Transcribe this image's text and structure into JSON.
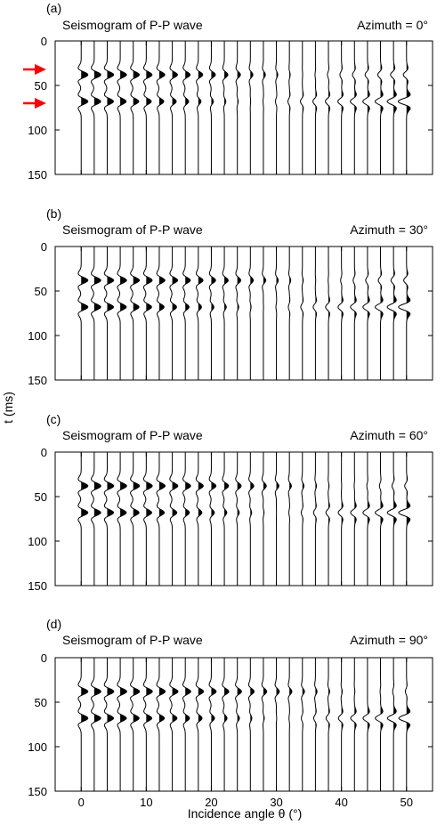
{
  "figure": {
    "ylabel": "t (ms)",
    "xlabel": "Incidence angle θ (°)"
  },
  "colors": {
    "trace": "#000000",
    "arrow": "#ff0000",
    "background": "#ffffff"
  },
  "chart_data": [
    {
      "type": "wiggle-seismogram",
      "panel_label": "(a)",
      "title": "Seismogram of P-P wave",
      "annotation": "Azimuth = 0°",
      "ylim": [
        0,
        150
      ],
      "yticks": [
        0,
        50,
        100,
        150
      ],
      "xlim": [
        -4,
        54
      ],
      "xticks": [
        0,
        10,
        20,
        30,
        40,
        50
      ],
      "trace_angles": [
        0,
        2,
        4,
        6,
        8,
        10,
        12,
        14,
        16,
        18,
        20,
        22,
        24,
        26,
        28,
        30,
        32,
        34,
        36,
        38,
        40,
        42,
        44,
        46,
        48,
        50
      ],
      "events": [
        {
          "time_ms": 38,
          "amplitudes": [
            1.0,
            0.98,
            0.96,
            0.93,
            0.9,
            0.86,
            0.82,
            0.77,
            0.72,
            0.66,
            0.6,
            0.53,
            0.46,
            0.38,
            0.3,
            0.21,
            0.12,
            0.03,
            -0.06,
            -0.15,
            -0.23,
            -0.3,
            -0.36,
            -0.41,
            -0.45,
            -0.48
          ]
        },
        {
          "time_ms": 68,
          "amplitudes": [
            1.0,
            0.97,
            0.93,
            0.88,
            0.82,
            0.75,
            0.67,
            0.59,
            0.5,
            0.4,
            0.31,
            0.22,
            0.13,
            0.04,
            -0.05,
            -0.14,
            -0.22,
            -0.3,
            -0.38,
            -0.46,
            -0.54,
            -0.62,
            -0.7,
            -0.8,
            -0.95,
            -1.25
          ]
        }
      ],
      "arrows_at_ms": [
        32,
        70
      ]
    },
    {
      "type": "wiggle-seismogram",
      "panel_label": "(b)",
      "title": "Seismogram of P-P wave",
      "annotation": "Azimuth = 30°",
      "ylim": [
        0,
        150
      ],
      "yticks": [
        0,
        50,
        100,
        150
      ],
      "xlim": [
        -4,
        54
      ],
      "xticks": [
        0,
        10,
        20,
        30,
        40,
        50
      ],
      "trace_angles": [
        0,
        2,
        4,
        6,
        8,
        10,
        12,
        14,
        16,
        18,
        20,
        22,
        24,
        26,
        28,
        30,
        32,
        34,
        36,
        38,
        40,
        42,
        44,
        46,
        48,
        50
      ],
      "events": [
        {
          "time_ms": 38,
          "amplitudes": [
            1.0,
            0.98,
            0.96,
            0.94,
            0.91,
            0.88,
            0.84,
            0.8,
            0.75,
            0.7,
            0.64,
            0.58,
            0.51,
            0.44,
            0.36,
            0.28,
            0.2,
            0.12,
            0.04,
            -0.04,
            -0.12,
            -0.2,
            -0.27,
            -0.33,
            -0.38,
            -0.42
          ]
        },
        {
          "time_ms": 68,
          "amplitudes": [
            1.0,
            0.97,
            0.94,
            0.9,
            0.85,
            0.79,
            0.72,
            0.64,
            0.56,
            0.47,
            0.38,
            0.29,
            0.2,
            0.11,
            0.02,
            -0.07,
            -0.16,
            -0.25,
            -0.34,
            -0.43,
            -0.52,
            -0.6,
            -0.69,
            -0.79,
            -0.94,
            -1.2
          ]
        }
      ],
      "arrows_at_ms": []
    },
    {
      "type": "wiggle-seismogram",
      "panel_label": "(c)",
      "title": "Seismogram of P-P wave",
      "annotation": "Azimuth = 60°",
      "ylim": [
        0,
        150
      ],
      "yticks": [
        0,
        50,
        100,
        150
      ],
      "xlim": [
        -4,
        54
      ],
      "xticks": [
        0,
        10,
        20,
        30,
        40,
        50
      ],
      "trace_angles": [
        0,
        2,
        4,
        6,
        8,
        10,
        12,
        14,
        16,
        18,
        20,
        22,
        24,
        26,
        28,
        30,
        32,
        34,
        36,
        38,
        40,
        42,
        44,
        46,
        48,
        50
      ],
      "events": [
        {
          "time_ms": 38,
          "amplitudes": [
            1.0,
            0.99,
            0.97,
            0.95,
            0.93,
            0.9,
            0.87,
            0.83,
            0.79,
            0.74,
            0.69,
            0.63,
            0.57,
            0.51,
            0.44,
            0.37,
            0.3,
            0.23,
            0.16,
            0.09,
            0.03,
            -0.04,
            -0.1,
            -0.16,
            -0.22,
            -0.27
          ]
        },
        {
          "time_ms": 68,
          "amplitudes": [
            1.0,
            0.97,
            0.94,
            0.9,
            0.86,
            0.81,
            0.75,
            0.68,
            0.61,
            0.53,
            0.45,
            0.37,
            0.28,
            0.19,
            0.1,
            0.01,
            -0.08,
            -0.18,
            -0.28,
            -0.38,
            -0.48,
            -0.58,
            -0.68,
            -0.79,
            -0.93,
            -1.18
          ]
        }
      ],
      "arrows_at_ms": []
    },
    {
      "type": "wiggle-seismogram",
      "panel_label": "(d)",
      "title": "Seismogram of P-P wave",
      "annotation": "Azimuth = 90°",
      "ylim": [
        0,
        150
      ],
      "yticks": [
        0,
        50,
        100,
        150
      ],
      "xlim": [
        -4,
        54
      ],
      "xticks": [
        0,
        10,
        20,
        30,
        40,
        50
      ],
      "trace_angles": [
        0,
        2,
        4,
        6,
        8,
        10,
        12,
        14,
        16,
        18,
        20,
        22,
        24,
        26,
        28,
        30,
        32,
        34,
        36,
        38,
        40,
        42,
        44,
        46,
        48,
        50
      ],
      "events": [
        {
          "time_ms": 38,
          "amplitudes": [
            1.0,
            0.99,
            0.98,
            0.96,
            0.94,
            0.91,
            0.88,
            0.85,
            0.81,
            0.77,
            0.72,
            0.67,
            0.62,
            0.56,
            0.5,
            0.44,
            0.37,
            0.31,
            0.24,
            0.18,
            0.12,
            0.06,
            0.0,
            -0.06,
            -0.12,
            -0.17
          ]
        },
        {
          "time_ms": 68,
          "amplitudes": [
            1.0,
            0.97,
            0.94,
            0.91,
            0.87,
            0.82,
            0.76,
            0.7,
            0.63,
            0.56,
            0.48,
            0.4,
            0.31,
            0.22,
            0.13,
            0.04,
            -0.06,
            -0.16,
            -0.26,
            -0.36,
            -0.46,
            -0.57,
            -0.67,
            -0.78,
            -0.92,
            -1.15
          ]
        }
      ],
      "arrows_at_ms": []
    }
  ]
}
